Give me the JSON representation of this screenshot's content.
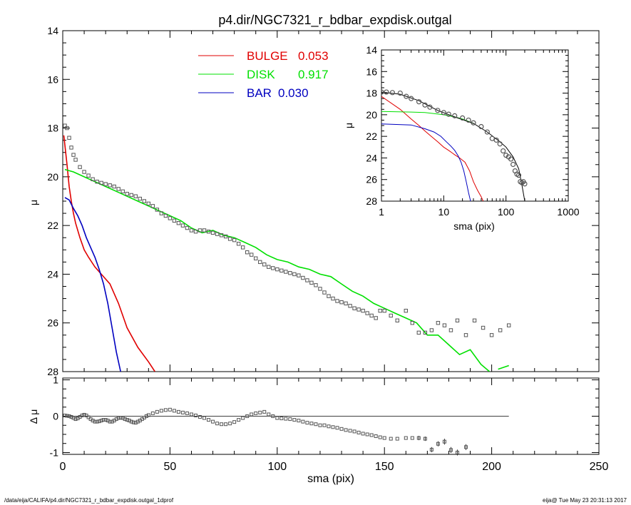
{
  "title": "p4.dir/NGC7321_r_bdbar_expdisk.outgal",
  "footer": {
    "left": "/data/eija/CALIFA/p4.dir/NGC7321_r_bdbar_expdisk.outgal_1dprof",
    "right": "eija@  Tue May 23 20:31:13 2017"
  },
  "colors": {
    "bulge": "#e00000",
    "disk": "#00e000",
    "bar": "#0000c0",
    "data": "#555555"
  },
  "chart_data": [
    {
      "id": "main",
      "type": "line",
      "ylabel": "μ",
      "xlim": [
        0,
        250
      ],
      "ylim": [
        28,
        14
      ],
      "yticks": [
        14,
        16,
        18,
        20,
        22,
        24,
        26,
        28
      ],
      "legend": [
        {
          "name": "BULGE",
          "value": "0.053",
          "color": "#e00000"
        },
        {
          "name": "DISK",
          "value": "0.917",
          "color": "#00e000"
        },
        {
          "name": "BAR",
          "value": "0.030",
          "color": "#0000c0"
        }
      ],
      "series": [
        {
          "name": "BULGE",
          "color": "#e00000",
          "x": [
            0.5,
            1,
            2,
            3,
            4,
            5,
            6,
            8,
            10,
            12,
            15,
            18,
            22,
            26,
            30,
            35,
            40,
            43
          ],
          "y": [
            18.3,
            18.7,
            19.5,
            20.4,
            21.0,
            21.5,
            21.9,
            22.5,
            23.0,
            23.3,
            23.7,
            24.0,
            24.4,
            25.2,
            26.2,
            27.0,
            27.6,
            28.0
          ]
        },
        {
          "name": "DISK",
          "color": "#00e000",
          "x": [
            1,
            5,
            10,
            15,
            20,
            25,
            30,
            35,
            40,
            45,
            50,
            55,
            60,
            65,
            70,
            75,
            80,
            85,
            90,
            95,
            100,
            105,
            110,
            115,
            120,
            125,
            130,
            135,
            140,
            145,
            150,
            155,
            160,
            165,
            170,
            175,
            180,
            185,
            190,
            195,
            199
          ],
          "y": [
            19.7,
            19.8,
            20.0,
            20.2,
            20.4,
            20.6,
            20.8,
            21.0,
            21.2,
            21.4,
            21.6,
            21.8,
            22.1,
            22.3,
            22.2,
            22.4,
            22.5,
            22.7,
            22.9,
            23.2,
            23.4,
            23.5,
            23.7,
            23.8,
            24.0,
            24.1,
            24.4,
            24.7,
            24.9,
            25.2,
            25.4,
            25.6,
            25.8,
            26.0,
            26.5,
            26.5,
            26.9,
            27.3,
            27.1,
            27.7,
            28.0
          ]
        },
        {
          "name": "DISK",
          "color": "#00e000",
          "x": [
            203,
            208
          ],
          "y": [
            27.9,
            27.75
          ]
        },
        {
          "name": "BAR",
          "color": "#0000c0",
          "x": [
            1,
            3,
            5,
            7,
            9,
            11,
            13,
            15,
            17,
            19,
            21,
            23,
            25,
            27
          ],
          "y": [
            20.85,
            20.95,
            21.3,
            21.6,
            22.0,
            22.5,
            22.9,
            23.3,
            23.8,
            24.4,
            25.2,
            26.2,
            27.2,
            28.0
          ]
        }
      ],
      "points": {
        "x": [
          1,
          2,
          3,
          4,
          5,
          6,
          8,
          10,
          12,
          14,
          16,
          18,
          20,
          22,
          24,
          26,
          28,
          30,
          32,
          34,
          36,
          38,
          40,
          42,
          44,
          46,
          48,
          50,
          52,
          54,
          56,
          58,
          60,
          62,
          64,
          66,
          68,
          70,
          72,
          74,
          76,
          78,
          80,
          82,
          84,
          86,
          88,
          90,
          92,
          94,
          96,
          98,
          100,
          102,
          104,
          106,
          108,
          110,
          112,
          114,
          116,
          118,
          120,
          122,
          124,
          126,
          128,
          130,
          132,
          134,
          136,
          138,
          140,
          142,
          144,
          146,
          148,
          150,
          153,
          156,
          160,
          163,
          166,
          169,
          172,
          175,
          178,
          181,
          184,
          188,
          192,
          196,
          200,
          204,
          208
        ],
        "y": [
          17.9,
          18.0,
          18.4,
          18.8,
          19.1,
          19.3,
          19.6,
          19.8,
          19.95,
          20.1,
          20.2,
          20.25,
          20.3,
          20.35,
          20.4,
          20.5,
          20.6,
          20.7,
          20.75,
          20.8,
          20.9,
          21.0,
          21.1,
          21.2,
          21.35,
          21.5,
          21.6,
          21.7,
          21.8,
          21.9,
          22.0,
          22.1,
          22.2,
          22.25,
          22.2,
          22.2,
          22.25,
          22.3,
          22.35,
          22.4,
          22.45,
          22.55,
          22.6,
          22.75,
          22.9,
          23.1,
          23.2,
          23.35,
          23.5,
          23.6,
          23.7,
          23.75,
          23.8,
          23.85,
          23.9,
          23.95,
          24.0,
          24.05,
          24.15,
          24.25,
          24.35,
          24.45,
          24.6,
          24.75,
          24.9,
          25.0,
          25.1,
          25.15,
          25.2,
          25.3,
          25.4,
          25.45,
          25.5,
          25.6,
          25.7,
          25.8,
          25.5,
          25.5,
          25.7,
          25.9,
          25.5,
          26.0,
          26.4,
          26.4,
          26.3,
          26.0,
          26.1,
          26.3,
          25.9,
          26.5,
          25.9,
          26.2,
          26.5,
          26.3,
          26.1
        ]
      }
    },
    {
      "id": "inset",
      "type": "line",
      "xlabel": "sma (pix)",
      "ylabel": "μ",
      "xscale": "log",
      "xlim": [
        1,
        1000
      ],
      "ylim": [
        28,
        14
      ],
      "xticks": [
        1,
        10,
        100,
        1000
      ],
      "yticks": [
        14,
        16,
        18,
        20,
        22,
        24,
        26,
        28
      ],
      "series": [
        {
          "name": "BULGE",
          "color": "#e00000",
          "x": [
            1,
            2,
            3,
            4,
            5,
            6,
            8,
            10,
            12,
            15,
            18,
            22,
            26,
            30,
            35,
            40,
            43
          ],
          "y": [
            18.3,
            19.5,
            20.4,
            21.0,
            21.5,
            21.9,
            22.5,
            23.0,
            23.3,
            23.7,
            24.0,
            24.4,
            25.2,
            26.2,
            27.0,
            27.6,
            28.0
          ]
        },
        {
          "name": "DISK",
          "color": "#00e000",
          "x": [
            1,
            3,
            5,
            10,
            15,
            20,
            30
          ],
          "y": [
            19.7,
            19.75,
            19.8,
            20.0,
            20.2,
            20.4,
            20.8
          ]
        },
        {
          "name": "BAR",
          "color": "#0000c0",
          "x": [
            1,
            3,
            5,
            7,
            9,
            11,
            13,
            15,
            17,
            19,
            21,
            23,
            25,
            27
          ],
          "y": [
            20.85,
            20.95,
            21.3,
            21.6,
            22.0,
            22.5,
            22.9,
            23.3,
            23.8,
            24.4,
            25.2,
            26.2,
            27.2,
            28.0
          ]
        },
        {
          "name": "MODEL",
          "color": "#000000",
          "x": [
            1,
            2,
            4,
            8,
            15,
            30,
            50,
            80,
            100,
            130,
            160,
            180,
            200
          ],
          "y": [
            17.9,
            18.1,
            18.7,
            19.6,
            20.2,
            20.8,
            21.6,
            22.5,
            23.0,
            23.9,
            25.0,
            26.5,
            28.0
          ]
        }
      ],
      "points": {
        "x": [
          1,
          1.2,
          1.5,
          2,
          2.5,
          3,
          4,
          5,
          6,
          8,
          10,
          12,
          15,
          20,
          25,
          30,
          40,
          50,
          60,
          70,
          80,
          90,
          100,
          110,
          120,
          130,
          140,
          150,
          160,
          170,
          180,
          190,
          200
        ],
        "y": [
          17.9,
          17.9,
          17.95,
          18.0,
          18.3,
          18.5,
          18.8,
          19.1,
          19.3,
          19.6,
          19.8,
          19.95,
          20.1,
          20.3,
          20.5,
          20.75,
          21.1,
          21.6,
          22.2,
          22.35,
          22.7,
          23.35,
          23.75,
          23.9,
          24.1,
          24.6,
          25.2,
          25.5,
          25.6,
          26.2,
          26.3,
          26.2,
          26.4
        ]
      }
    },
    {
      "id": "residual",
      "type": "scatter",
      "xlabel": "sma (pix)",
      "ylabel": "Δ μ",
      "xlim": [
        0,
        250
      ],
      "ylim": [
        -1.05,
        1.05
      ],
      "xticks": [
        0,
        50,
        100,
        150,
        200,
        250
      ],
      "yticks": [
        -1,
        0,
        1
      ],
      "zero_line": {
        "x": [
          0,
          208
        ],
        "y": 0
      },
      "points": {
        "x": [
          1,
          2,
          3,
          4,
          5,
          6,
          7,
          8,
          9,
          10,
          11,
          12,
          13,
          14,
          15,
          16,
          17,
          18,
          19,
          20,
          21,
          22,
          23,
          24,
          25,
          26,
          27,
          28,
          29,
          30,
          31,
          32,
          33,
          34,
          35,
          36,
          37,
          38,
          39,
          40,
          42,
          44,
          46,
          48,
          50,
          52,
          54,
          56,
          58,
          60,
          62,
          64,
          66,
          68,
          70,
          72,
          74,
          76,
          78,
          80,
          82,
          84,
          86,
          88,
          90,
          92,
          94,
          96,
          98,
          100,
          102,
          104,
          106,
          108,
          110,
          112,
          114,
          116,
          118,
          120,
          122,
          124,
          126,
          128,
          130,
          132,
          134,
          136,
          138,
          140,
          142,
          144,
          146,
          148,
          150,
          153,
          156,
          160,
          163,
          166,
          169,
          172,
          175,
          178,
          181,
          184,
          188
        ],
        "y": [
          0.02,
          0.01,
          0.0,
          -0.02,
          -0.05,
          -0.08,
          -0.06,
          -0.02,
          0.02,
          0.04,
          0.02,
          -0.03,
          -0.08,
          -0.12,
          -0.15,
          -0.15,
          -0.14,
          -0.12,
          -0.1,
          -0.1,
          -0.12,
          -0.15,
          -0.15,
          -0.12,
          -0.08,
          -0.05,
          -0.04,
          -0.05,
          -0.08,
          -0.1,
          -0.12,
          -0.15,
          -0.17,
          -0.18,
          -0.15,
          -0.12,
          -0.08,
          -0.04,
          0.0,
          0.03,
          0.08,
          0.12,
          0.15,
          0.17,
          0.18,
          0.15,
          0.12,
          0.1,
          0.08,
          0.05,
          0.02,
          -0.02,
          -0.05,
          -0.1,
          -0.15,
          -0.2,
          -0.22,
          -0.22,
          -0.2,
          -0.16,
          -0.1,
          -0.05,
          0.0,
          0.05,
          0.08,
          0.1,
          0.12,
          0.05,
          0.0,
          -0.05,
          -0.06,
          -0.07,
          -0.08,
          -0.1,
          -0.12,
          -0.15,
          -0.18,
          -0.2,
          -0.22,
          -0.25,
          -0.25,
          -0.28,
          -0.3,
          -0.32,
          -0.35,
          -0.38,
          -0.4,
          -0.42,
          -0.45,
          -0.48,
          -0.5,
          -0.52,
          -0.55,
          -0.58,
          -0.6,
          -0.62,
          -0.62,
          -0.6,
          -0.6,
          -0.6,
          -0.62,
          -0.92,
          -0.76,
          -0.7,
          -0.93,
          -1.0,
          -0.85
        ],
        "yerr": [
          0,
          0,
          0,
          0,
          0,
          0,
          0,
          0,
          0,
          0,
          0,
          0,
          0,
          0,
          0,
          0,
          0,
          0,
          0,
          0,
          0,
          0,
          0,
          0,
          0,
          0,
          0,
          0,
          0,
          0,
          0,
          0,
          0,
          0,
          0,
          0,
          0,
          0,
          0,
          0,
          0,
          0,
          0,
          0,
          0,
          0,
          0,
          0,
          0,
          0,
          0,
          0,
          0,
          0,
          0,
          0,
          0,
          0,
          0,
          0,
          0,
          0,
          0,
          0,
          0,
          0,
          0,
          0,
          0,
          0,
          0,
          0,
          0,
          0,
          0,
          0,
          0,
          0,
          0,
          0,
          0,
          0,
          0,
          0,
          0,
          0,
          0,
          0,
          0,
          0,
          0,
          0,
          0,
          0,
          0,
          0,
          0,
          0,
          0,
          0.06,
          0.06,
          0.07,
          0.07,
          0.08,
          0.08,
          0.08,
          0.08
        ]
      }
    }
  ]
}
